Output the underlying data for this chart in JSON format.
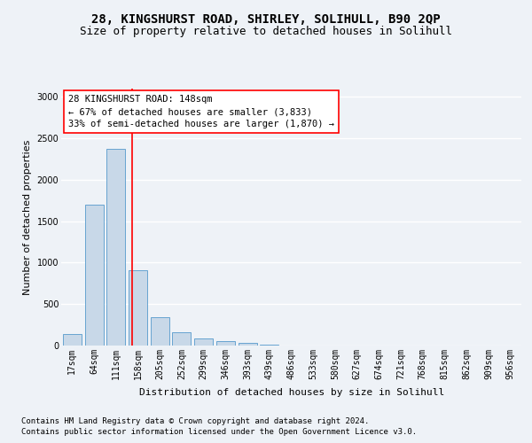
{
  "title_line1": "28, KINGSHURST ROAD, SHIRLEY, SOLIHULL, B90 2QP",
  "title_line2": "Size of property relative to detached houses in Solihull",
  "xlabel": "Distribution of detached houses by size in Solihull",
  "ylabel": "Number of detached properties",
  "bar_labels": [
    "17sqm",
    "64sqm",
    "111sqm",
    "158sqm",
    "205sqm",
    "252sqm",
    "299sqm",
    "346sqm",
    "393sqm",
    "439sqm",
    "486sqm",
    "533sqm",
    "580sqm",
    "627sqm",
    "674sqm",
    "721sqm",
    "768sqm",
    "815sqm",
    "862sqm",
    "909sqm",
    "956sqm"
  ],
  "bar_values": [
    140,
    1700,
    2370,
    910,
    340,
    160,
    90,
    55,
    35,
    15,
    5,
    2,
    1,
    0,
    0,
    0,
    0,
    0,
    0,
    0,
    0
  ],
  "bar_color": "#c8d8e8",
  "bar_edge_color": "#5599cc",
  "annotation_box_text": "28 KINGSHURST ROAD: 148sqm\n← 67% of detached houses are smaller (3,833)\n33% of semi-detached houses are larger (1,870) →",
  "vline_x": 2.75,
  "ylim": [
    0,
    3100
  ],
  "yticks": [
    0,
    500,
    1000,
    1500,
    2000,
    2500,
    3000
  ],
  "footer_line1": "Contains HM Land Registry data © Crown copyright and database right 2024.",
  "footer_line2": "Contains public sector information licensed under the Open Government Licence v3.0.",
  "background_color": "#eef2f7",
  "plot_background": "#eef2f7",
  "grid_color": "#ffffff",
  "title_fontsize": 10,
  "subtitle_fontsize": 9,
  "annotation_fontsize": 7.5,
  "axis_label_fontsize": 8,
  "tick_fontsize": 7,
  "footer_fontsize": 6.5
}
